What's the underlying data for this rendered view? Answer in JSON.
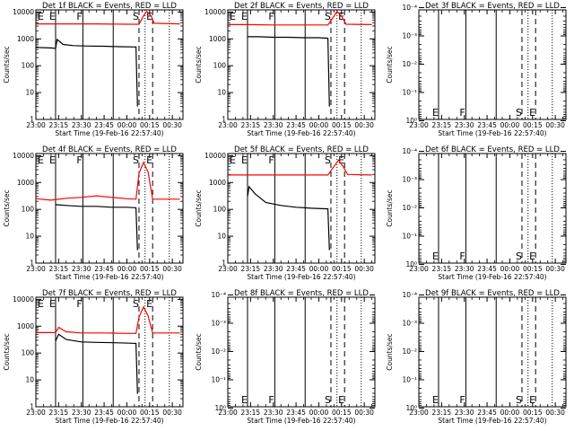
{
  "chart_data": {
    "type": "line",
    "yscale": "log",
    "x_tick_labels": [
      "23:00",
      "23:15",
      "23:30",
      "23:45",
      "00:00",
      "00:15",
      "00:30"
    ],
    "x_tick_minutes": [
      0,
      15,
      30,
      45,
      60,
      75,
      90
    ],
    "xlim_minutes": [
      0,
      97
    ],
    "xlabel": "Start Time (19-Feb-16 22:57:40)",
    "ylabel": "Counts/sec",
    "series_colors": {
      "events": "#000000",
      "lld": "#ff0000"
    },
    "markers": {
      "solid": [
        {
          "label": "E",
          "x": 13
        },
        {
          "label": "F",
          "x": 31
        },
        {
          "label": "",
          "x": 51
        }
      ],
      "dashed": [
        {
          "label": "S",
          "x": 68
        },
        {
          "label": "E",
          "x": 77
        }
      ],
      "dotted": [
        {
          "x": 72
        },
        {
          "x": 88
        }
      ]
    },
    "panels": [
      {
        "title": "Det 1f BLACK = Events, RED = LLD",
        "ylim": [
          1,
          12000
        ],
        "y_ticks": [
          1,
          10,
          100,
          1000,
          10000
        ],
        "y_tick_labels": [
          "1",
          "10",
          "100",
          "1000",
          "10000"
        ],
        "has_data": true,
        "events": [
          [
            0,
            480
          ],
          [
            5,
            470
          ],
          [
            10,
            460
          ],
          [
            13,
            440
          ],
          [
            14,
            950
          ],
          [
            18,
            620
          ],
          [
            25,
            560
          ],
          [
            35,
            540
          ],
          [
            45,
            530
          ],
          [
            55,
            510
          ],
          [
            66,
            500
          ],
          [
            67,
            3
          ]
        ],
        "lld": [
          [
            0,
            3600
          ],
          [
            13,
            3600
          ],
          [
            20,
            3600
          ],
          [
            40,
            3600
          ],
          [
            60,
            3500
          ],
          [
            68,
            3500
          ],
          [
            71,
            7200
          ],
          [
            73,
            10500
          ],
          [
            76,
            7200
          ],
          [
            78,
            3800
          ],
          [
            95,
            3600
          ]
        ]
      },
      {
        "title": "Det 2f BLACK = Events, RED = LLD",
        "ylim": [
          1,
          12000
        ],
        "y_ticks": [
          1,
          10,
          100,
          1000,
          10000
        ],
        "y_tick_labels": [
          "1",
          "10",
          "100",
          "1000",
          "10000"
        ],
        "has_data": true,
        "events": [
          [
            13,
            1200
          ],
          [
            20,
            1200
          ],
          [
            30,
            1150
          ],
          [
            40,
            1150
          ],
          [
            50,
            1100
          ],
          [
            60,
            1100
          ],
          [
            66,
            1050
          ],
          [
            67,
            3
          ]
        ],
        "lld": [
          [
            0,
            3400
          ],
          [
            13,
            3400
          ],
          [
            30,
            3300
          ],
          [
            50,
            3300
          ],
          [
            66,
            3300
          ],
          [
            70,
            7000
          ],
          [
            72,
            10500
          ],
          [
            75,
            7000
          ],
          [
            78,
            3500
          ],
          [
            95,
            3400
          ]
        ]
      },
      {
        "title": "Det 3f BLACK = Events, RED = LLD",
        "ylim": [
          0.9,
          0.00012
        ],
        "y_ticks": [
          1,
          0.1,
          0.01,
          0.001,
          0.0001
        ],
        "y_tick_labels": [
          "10⁰",
          "10⁻¹",
          "10⁻²",
          "10⁻³",
          "10⁻⁴"
        ],
        "has_data": false
      },
      {
        "title": "Det 4f BLACK = Events, RED = LLD",
        "ylim": [
          1,
          12000
        ],
        "y_ticks": [
          1,
          10,
          100,
          1000,
          10000
        ],
        "y_tick_labels": [
          "1",
          "10",
          "100",
          "1000",
          "10000"
        ],
        "has_data": true,
        "events": [
          [
            13,
            150
          ],
          [
            20,
            140
          ],
          [
            30,
            130
          ],
          [
            40,
            130
          ],
          [
            50,
            120
          ],
          [
            60,
            120
          ],
          [
            66,
            115
          ],
          [
            67,
            3
          ]
        ],
        "lld": [
          [
            0,
            250
          ],
          [
            10,
            220
          ],
          [
            20,
            260
          ],
          [
            30,
            280
          ],
          [
            40,
            320
          ],
          [
            50,
            280
          ],
          [
            60,
            250
          ],
          [
            66,
            240
          ],
          [
            68,
            2200
          ],
          [
            71,
            5600
          ],
          [
            74,
            2500
          ],
          [
            77,
            240
          ],
          [
            95,
            240
          ]
        ]
      },
      {
        "title": "Det 5f BLACK = Events, RED = LLD",
        "ylim": [
          1,
          12000
        ],
        "y_ticks": [
          1,
          10,
          100,
          1000,
          10000
        ],
        "y_tick_labels": [
          "1",
          "10",
          "100",
          "1000",
          "10000"
        ],
        "has_data": true,
        "events": [
          [
            13,
            300
          ],
          [
            14,
            700
          ],
          [
            18,
            380
          ],
          [
            25,
            180
          ],
          [
            35,
            140
          ],
          [
            45,
            120
          ],
          [
            55,
            110
          ],
          [
            66,
            105
          ],
          [
            67,
            3
          ]
        ],
        "lld": [
          [
            0,
            1900
          ],
          [
            13,
            1900
          ],
          [
            30,
            1900
          ],
          [
            60,
            1900
          ],
          [
            66,
            1900
          ],
          [
            70,
            4000
          ],
          [
            73,
            6800
          ],
          [
            76,
            4000
          ],
          [
            79,
            2000
          ],
          [
            95,
            1900
          ]
        ]
      },
      {
        "title": "Det 6f BLACK = Events, RED = LLD",
        "ylim": [
          0.9,
          0.00012
        ],
        "y_ticks": [
          1,
          0.1,
          0.01,
          0.001,
          0.0001
        ],
        "y_tick_labels": [
          "10⁰",
          "10⁻¹",
          "10⁻²",
          "10⁻³",
          "10⁻⁴"
        ],
        "has_data": false
      },
      {
        "title": "Det 7f BLACK = Events, RED = LLD",
        "ylim": [
          1,
          12000
        ],
        "y_ticks": [
          1,
          10,
          100,
          1000,
          10000
        ],
        "y_tick_labels": [
          "1",
          "10",
          "100",
          "1000",
          "10000"
        ],
        "has_data": true,
        "events": [
          [
            13,
            280
          ],
          [
            15,
            500
          ],
          [
            20,
            320
          ],
          [
            30,
            260
          ],
          [
            40,
            250
          ],
          [
            55,
            240
          ],
          [
            66,
            230
          ],
          [
            67,
            3
          ]
        ],
        "lld": [
          [
            0,
            580
          ],
          [
            13,
            580
          ],
          [
            15,
            900
          ],
          [
            20,
            620
          ],
          [
            30,
            560
          ],
          [
            45,
            560
          ],
          [
            60,
            540
          ],
          [
            66,
            540
          ],
          [
            68,
            2200
          ],
          [
            71,
            5200
          ],
          [
            74,
            2400
          ],
          [
            77,
            560
          ],
          [
            95,
            560
          ]
        ]
      },
      {
        "title": "Det 8f BLACK = Events, RED = LLD",
        "ylim": [
          0.9,
          0.00012
        ],
        "y_ticks": [
          1,
          0.1,
          0.01,
          0.001,
          0.0001
        ],
        "y_tick_labels": [
          "10⁰",
          "10⁻¹",
          "10⁻²",
          "10⁻³",
          "10⁻⁴"
        ],
        "has_data": false
      },
      {
        "title": "Det 9f BLACK = Events, RED = LLD",
        "ylim": [
          0.9,
          0.00012
        ],
        "y_ticks": [
          1,
          0.1,
          0.01,
          0.001,
          0.0001
        ],
        "y_tick_labels": [
          "10⁰",
          "10⁻¹",
          "10⁻²",
          "10⁻³",
          "10⁻⁴"
        ],
        "has_data": false
      }
    ]
  }
}
